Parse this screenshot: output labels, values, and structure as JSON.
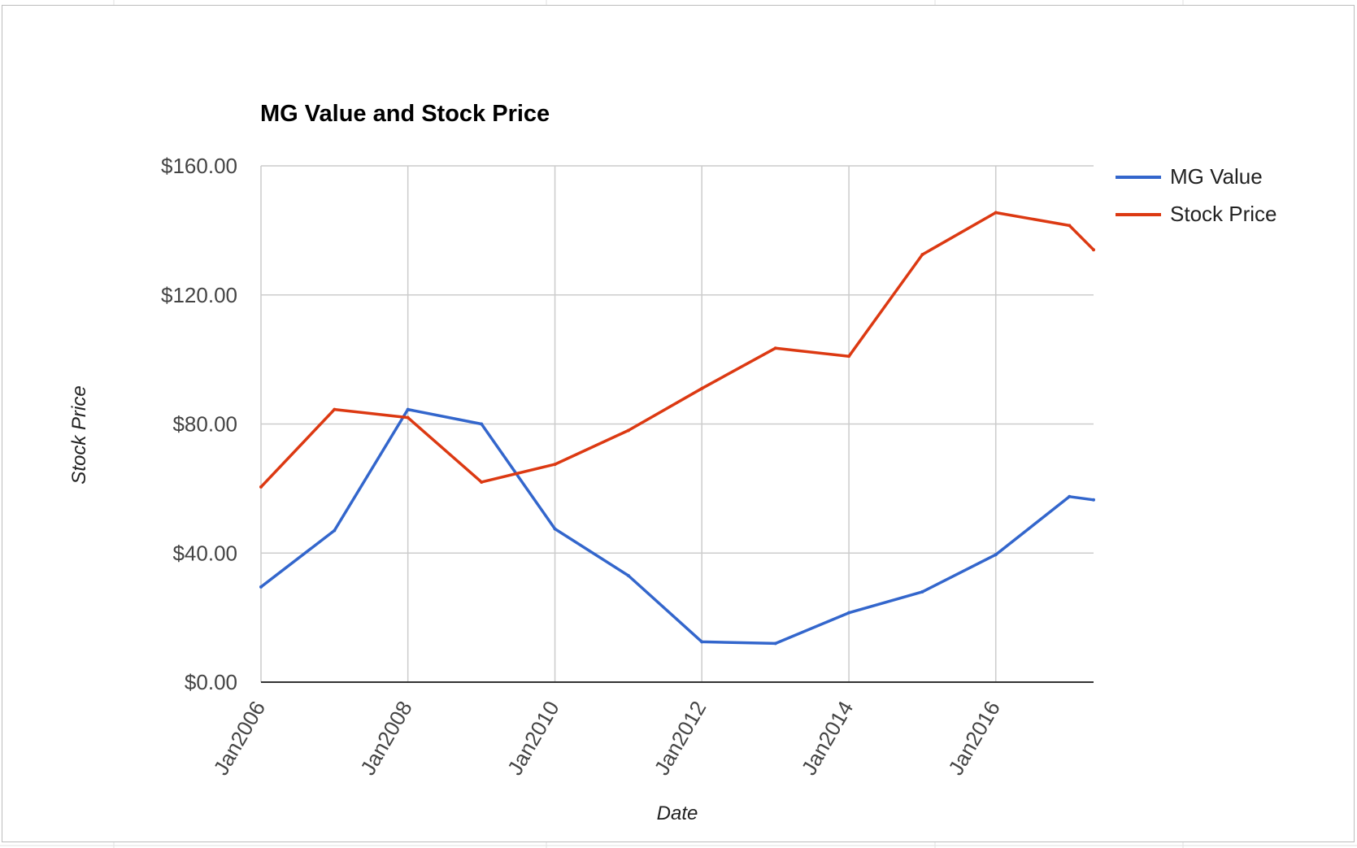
{
  "chart_data": {
    "type": "line",
    "title": "MG Value and Stock Price",
    "xlabel": "Date",
    "ylabel": "Stock Price",
    "x": [
      "2006-01",
      "2007-01",
      "2008-01",
      "2009-01",
      "2010-01",
      "2011-01",
      "2012-01",
      "2013-01",
      "2014-01",
      "2015-01",
      "2016-01",
      "2017-01",
      "2017-05"
    ],
    "x_ticks": [
      "Jan2006",
      "Jan2008",
      "Jan2010",
      "Jan2012",
      "Jan2014",
      "Jan2016"
    ],
    "y_ticks": [
      "$0.00",
      "$40.00",
      "$80.00",
      "$120.00",
      "$160.00"
    ],
    "ylim": [
      0,
      160
    ],
    "grid": true,
    "legend": "right",
    "series": [
      {
        "name": "MG Value",
        "color": "#3366cc",
        "values": [
          29.5,
          47,
          84.5,
          80,
          47.5,
          33,
          12.5,
          12,
          21.5,
          28,
          39.5,
          57.5,
          56.5
        ]
      },
      {
        "name": "Stock Price",
        "color": "#dc3912",
        "values": [
          60.5,
          84.5,
          82,
          62,
          67.5,
          78,
          91,
          103.5,
          101,
          132.5,
          145.5,
          141.5,
          134
        ]
      }
    ]
  }
}
